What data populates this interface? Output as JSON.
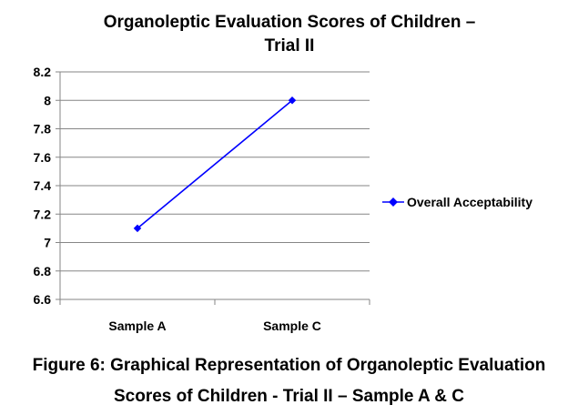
{
  "chart_data": {
    "type": "line",
    "title": "Organoleptic Evaluation Scores of Children – Trial II",
    "title_lines": [
      "Organoleptic Evaluation Scores of Children –",
      "Trial II"
    ],
    "categories": [
      "Sample A",
      "Sample C"
    ],
    "series": [
      {
        "name": "Overall Acceptability",
        "values": [
          7.1,
          8.0
        ],
        "color": "#0000FF"
      }
    ],
    "ylim": [
      6.6,
      8.2
    ],
    "yticks": [
      "6.6",
      "6.8",
      "7",
      "7.2",
      "7.4",
      "7.6",
      "7.8",
      "8",
      "8.2"
    ],
    "xlabel": "",
    "ylabel": "",
    "grid": "horizontal",
    "legend": "right"
  },
  "caption": {
    "line1": "Figure 6: Graphical Representation of Organoleptic Evaluation",
    "line2": "Scores of Children - Trial II – Sample A & C"
  }
}
